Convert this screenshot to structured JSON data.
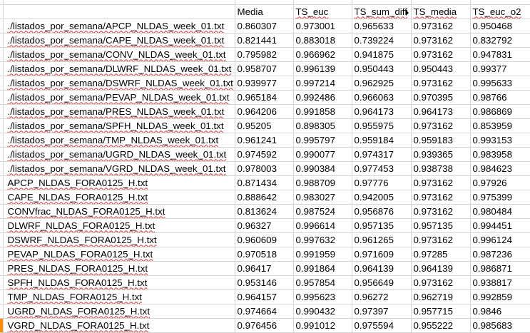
{
  "columns": [
    "Media",
    "TS_euc",
    "TS_sum_diff",
    "TS_media",
    "TS_euc_o2"
  ],
  "rows": [
    {
      "name": "./listados_por_semana/APCP_NLDAS_week_01.txt",
      "values": [
        "0.860307",
        "0.973001",
        "0.965633",
        "0.973162",
        "0.950468"
      ]
    },
    {
      "name": "./listados_por_semana/CAPE_NLDAS_week_01.txt",
      "values": [
        "0.821441",
        "0.883018",
        "0.739224",
        "0.973162",
        "0.832792"
      ]
    },
    {
      "name": "./listados_por_semana/CONV_NLDAS_week_01.txt",
      "values": [
        "0.795982",
        "0.966962",
        "0.941875",
        "0.973162",
        "0.947831"
      ]
    },
    {
      "name": "./listados_por_semana/DLWRF_NLDAS_week_01.txt",
      "values": [
        "0.958707",
        "0.996139",
        "0.950443",
        "0.950443",
        "0.99377"
      ]
    },
    {
      "name": "./listados_por_semana/DSWRF_NLDAS_week_01.txt",
      "values": [
        "0.939977",
        "0.997214",
        "0.962925",
        "0.973162",
        "0.995633"
      ]
    },
    {
      "name": "./listados_por_semana/PEVAP_NLDAS_week_01.txt",
      "values": [
        "0.965184",
        "0.992486",
        "0.966063",
        "0.970395",
        "0.98766"
      ]
    },
    {
      "name": "./listados_por_semana/PRES_NLDAS_week_01.txt",
      "values": [
        "0.964206",
        "0.991858",
        "0.964173",
        "0.964173",
        "0.986869"
      ]
    },
    {
      "name": "./listados_por_semana/SPFH_NLDAS_week_01.txt",
      "values": [
        "0.95205",
        "0.898305",
        "0.955975",
        "0.973162",
        "0.853959"
      ]
    },
    {
      "name": "./listados_por_semana/TMP_NLDAS_week_01.txt",
      "values": [
        "0.961241",
        "0.995797",
        "0.959184",
        "0.959183",
        "0.993153"
      ]
    },
    {
      "name": "./listados_por_semana/UGRD_NLDAS_week_01.txt",
      "values": [
        "0.974592",
        "0.990077",
        "0.974317",
        "0.939365",
        "0.983958"
      ]
    },
    {
      "name": "./listados_por_semana/VGRD_NLDAS_week_01.txt",
      "values": [
        "0.978003",
        "0.990384",
        "0.977453",
        "0.938738",
        "0.984623"
      ]
    },
    {
      "name": "APCP_NLDAS_FORA0125_H.txt",
      "values": [
        "0.871434",
        "0.988709",
        "0.97776",
        "0.973162",
        "0.97926"
      ]
    },
    {
      "name": "CAPE_NLDAS_FORA0125_H.txt",
      "values": [
        "0.888642",
        "0.983027",
        "0.942005",
        "0.973162",
        "0.975399"
      ]
    },
    {
      "name": "CONVfrac_NLDAS_FORA0125_H.txt",
      "values": [
        "0.813624",
        "0.987524",
        "0.956876",
        "0.973162",
        "0.980484"
      ]
    },
    {
      "name": "DLWRF_NLDAS_FORA0125_H.txt",
      "values": [
        "0.96327",
        "0.996614",
        "0.957135",
        "0.957135",
        "0.994451"
      ]
    },
    {
      "name": "DSWRF_NLDAS_FORA0125_H.txt",
      "values": [
        "0.960609",
        "0.997632",
        "0.961265",
        "0.973162",
        "0.996124"
      ]
    },
    {
      "name": "PEVAP_NLDAS_FORA0125_H.txt",
      "values": [
        "0.970518",
        "0.991959",
        "0.971609",
        "0.97285",
        "0.987236"
      ]
    },
    {
      "name": "PRES_NLDAS_FORA0125_H.txt",
      "values": [
        "0.96417",
        "0.991864",
        "0.964139",
        "0.964139",
        "0.986871"
      ]
    },
    {
      "name": "SPFH_NLDAS_FORA0125_H.txt",
      "values": [
        "0.953146",
        "0.957854",
        "0.956649",
        "0.973162",
        "0.938817"
      ]
    },
    {
      "name": "TMP_NLDAS_FORA0125_H.txt",
      "values": [
        "0.964157",
        "0.995623",
        "0.96272",
        "0.962719",
        "0.992859"
      ]
    },
    {
      "name": "UGRD_NLDAS_FORA0125_H.txt",
      "values": [
        "0.974664",
        "0.990432",
        "0.97397",
        "0.957715",
        "0.9846"
      ]
    },
    {
      "name": "VGRD_NLDAS_FORA0125_H.txt",
      "values": [
        "0.976456",
        "0.991012",
        "0.975594",
        "0.955222",
        "0.985683"
      ]
    }
  ],
  "selected_row_marker_color": "#ff8a00"
}
